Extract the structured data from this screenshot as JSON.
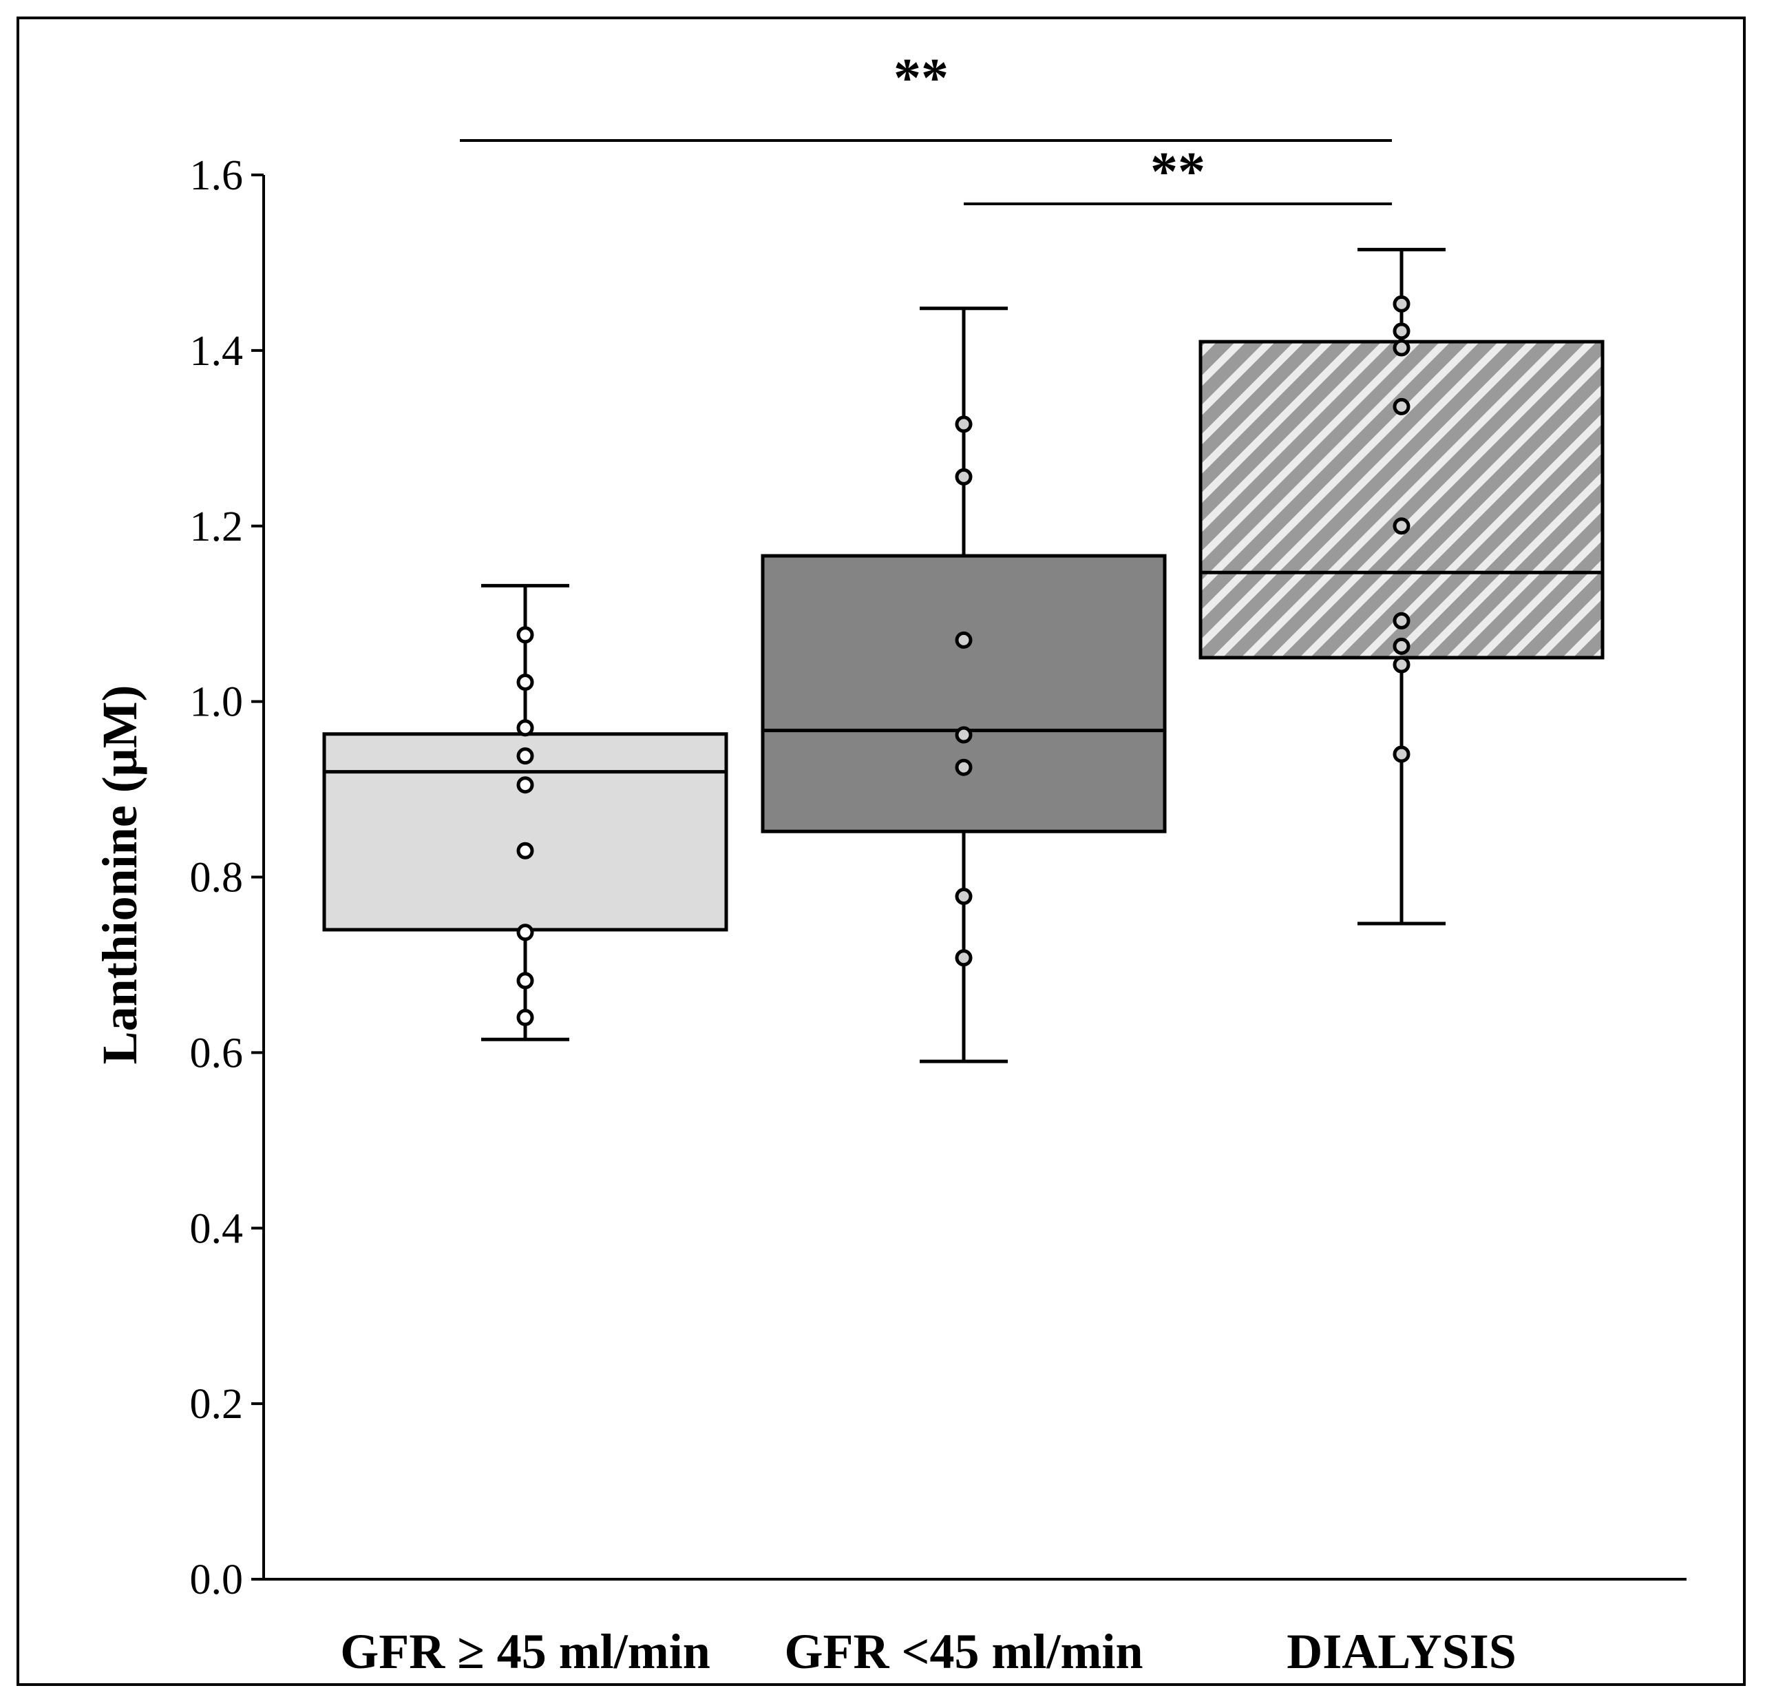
{
  "chart_data": {
    "type": "box",
    "title": "",
    "xlabel": "",
    "ylabel": "Lanthionine (μM)",
    "ylim": [
      0,
      1.6
    ],
    "yticks": [
      "0.0",
      "0.2",
      "0.4",
      "0.6",
      "0.8",
      "1.0",
      "1.2",
      "1.4",
      "1.6"
    ],
    "grid": false,
    "categories": [
      "GFR ≥ 45 ml/min",
      "GFR <45 ml/min",
      "DIALYSIS"
    ],
    "series": [
      {
        "name": "GFR ≥ 45 ml/min",
        "fill": "#dcdcdc",
        "pattern": "solid",
        "whisker_low": 0.615,
        "q1": 0.74,
        "median": 0.92,
        "q3": 0.963,
        "whisker_high": 1.132,
        "points": [
          1.076,
          1.022,
          0.97,
          0.938,
          0.905,
          0.83,
          0.737,
          0.682,
          0.64
        ],
        "point_fill": "#ffffff"
      },
      {
        "name": "GFR <45 ml/min",
        "fill": "#848484",
        "pattern": "solid",
        "whisker_low": 0.59,
        "q1": 0.852,
        "median": 0.967,
        "q3": 1.166,
        "whisker_high": 1.448,
        "points": [
          1.316,
          1.256,
          1.07,
          0.962,
          0.925,
          0.778,
          0.708
        ],
        "point_fill": "#d0d0d0"
      },
      {
        "name": "DIALYSIS",
        "fill": "#9a9a9a",
        "pattern": "hatch",
        "whisker_low": 0.747,
        "q1": 1.05,
        "median": 1.147,
        "q3": 1.41,
        "whisker_high": 1.515,
        "points": [
          1.453,
          1.422,
          1.403,
          1.336,
          1.2,
          1.092,
          1.063,
          1.042,
          0.94
        ],
        "point_fill": "#d0d0d0"
      }
    ],
    "significance": [
      {
        "from": 0,
        "to": 2,
        "label": "**"
      },
      {
        "from": 1,
        "to": 2,
        "label": "**"
      }
    ]
  }
}
